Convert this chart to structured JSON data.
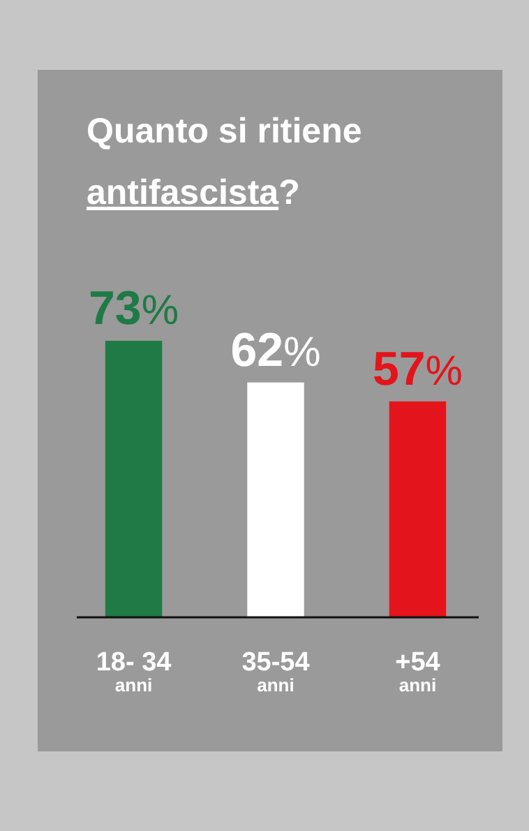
{
  "chart_data": {
    "type": "bar",
    "title": "Quanto si ritiene\nantifascista?",
    "categories": [
      "18- 34\nanni",
      "35-54\nanni",
      "+54\nanni"
    ],
    "values": [
      73,
      62,
      57
    ],
    "colors": [
      "#1f7a45",
      "#ffffff",
      "#e3141b"
    ],
    "value_labels": [
      "73%",
      "62%",
      "57%"
    ]
  }
}
